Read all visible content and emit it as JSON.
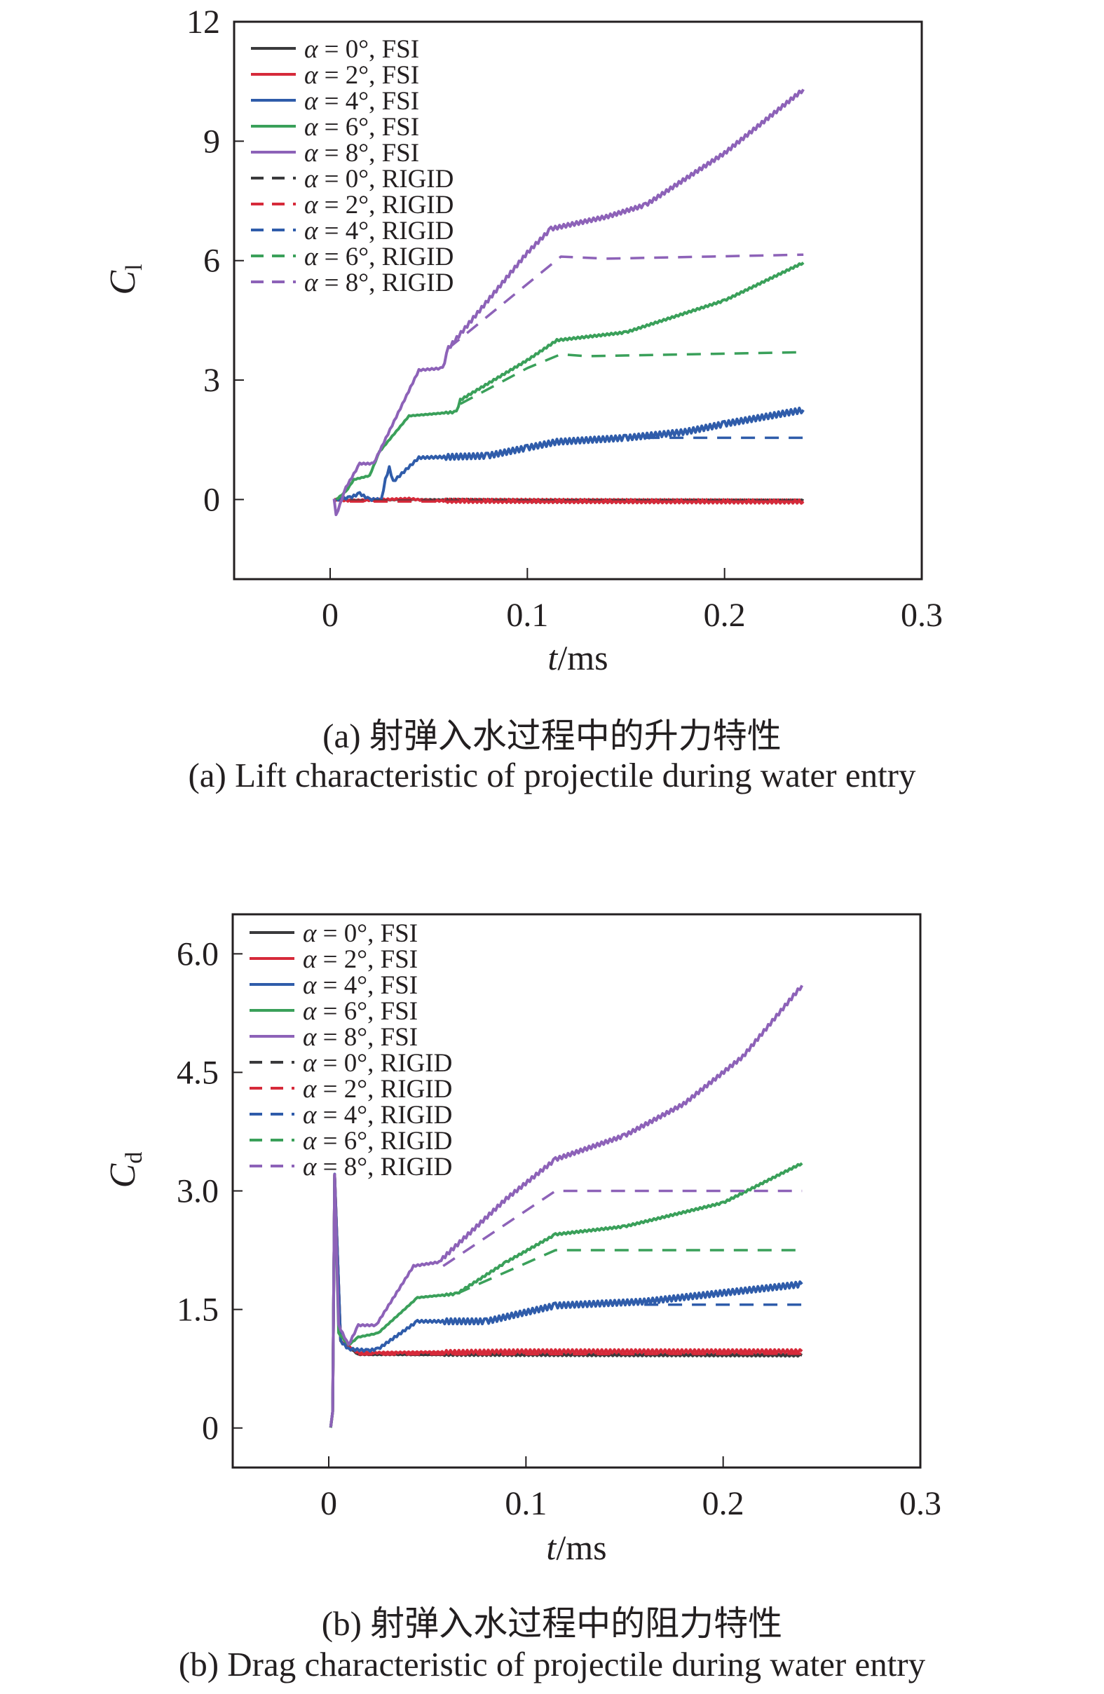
{
  "chart_data": [
    {
      "type": "line",
      "panel": "a",
      "xlabel_italic": "t",
      "xlabel_unit": "/ms",
      "ylabel_main": "C",
      "ylabel_sub": "l",
      "xlim": [
        -0.0487,
        0.3
      ],
      "ylim": [
        -2,
        12
      ],
      "xticks": [
        0,
        0.1,
        0.2,
        0.3
      ],
      "xtick_labels": [
        "0",
        "0.1",
        "0.2",
        "0.3"
      ],
      "yticks": [
        0,
        3,
        6,
        9,
        12
      ],
      "ytick_labels": [
        "0",
        "3",
        "6",
        "9",
        "12"
      ],
      "legend_position": "top-left",
      "caption_cn": "(a) 射弹入水过程中的升力特性",
      "caption_en": "(a) Lift characteristic of projectile during water entry",
      "series": [
        {
          "name": "α = 0°, FSI",
          "alpha": "α",
          "label": " = 0°, FSI",
          "color": "#3a3a3c",
          "dash": false,
          "points": [
            [
              0.002,
              0
            ],
            [
              0.01,
              -0.02
            ],
            [
              0.04,
              0
            ],
            [
              0.1,
              -0.03
            ],
            [
              0.24,
              -0.03
            ]
          ]
        },
        {
          "name": "α = 2°, FSI",
          "alpha": "α",
          "label": " = 2°, FSI",
          "color": "#d62a3a",
          "dash": false,
          "points": [
            [
              0.002,
              0
            ],
            [
              0.01,
              -0.03
            ],
            [
              0.04,
              0.02
            ],
            [
              0.05,
              -0.03
            ],
            [
              0.24,
              -0.05
            ]
          ]
        },
        {
          "name": "α = 4°, FSI",
          "alpha": "α",
          "label": " = 4°, FSI",
          "color": "#2f5caa",
          "dash": false,
          "points": [
            [
              0.003,
              0
            ],
            [
              0.01,
              0.05
            ],
            [
              0.015,
              0.15
            ],
            [
              0.02,
              0
            ],
            [
              0.026,
              0
            ],
            [
              0.028,
              0.5
            ],
            [
              0.03,
              0.8
            ],
            [
              0.032,
              0.45
            ],
            [
              0.045,
              1.05
            ],
            [
              0.08,
              1.1
            ],
            [
              0.1,
              1.3
            ],
            [
              0.115,
              1.45
            ],
            [
              0.15,
              1.55
            ],
            [
              0.18,
              1.7
            ],
            [
              0.2,
              1.9
            ],
            [
              0.24,
              2.25
            ]
          ]
        },
        {
          "name": "α = 6°, FSI",
          "alpha": "α",
          "label": " = 6°, FSI",
          "color": "#3aa05a",
          "dash": false,
          "points": [
            [
              0.003,
              0
            ],
            [
              0.008,
              0.2
            ],
            [
              0.012,
              0.5
            ],
            [
              0.02,
              0.6
            ],
            [
              0.025,
              1.2
            ],
            [
              0.04,
              2.1
            ],
            [
              0.064,
              2.2
            ],
            [
              0.066,
              2.5
            ],
            [
              0.1,
              3.5
            ],
            [
              0.115,
              4.0
            ],
            [
              0.15,
              4.2
            ],
            [
              0.2,
              5.0
            ],
            [
              0.24,
              5.95
            ]
          ]
        },
        {
          "name": "α = 8°, FSI",
          "alpha": "α",
          "label": " = 8°, FSI",
          "color": "#8d62b8",
          "dash": false,
          "points": [
            [
              0.002,
              0
            ],
            [
              0.003,
              -0.4
            ],
            [
              0.008,
              0.3
            ],
            [
              0.015,
              0.9
            ],
            [
              0.022,
              0.9
            ],
            [
              0.045,
              3.25
            ],
            [
              0.057,
              3.3
            ],
            [
              0.06,
              3.8
            ],
            [
              0.1,
              6.2
            ],
            [
              0.112,
              6.8
            ],
            [
              0.14,
              7.1
            ],
            [
              0.16,
              7.4
            ],
            [
              0.2,
              8.7
            ],
            [
              0.24,
              10.3
            ]
          ]
        },
        {
          "name": "α = 0°, RIGID",
          "alpha": "α",
          "label": " = 0°, RIGID",
          "color": "#3a3a3c",
          "dash": true,
          "points": [
            [
              0.01,
              -0.03
            ],
            [
              0.24,
              -0.03
            ]
          ]
        },
        {
          "name": "α = 2°, RIGID",
          "alpha": "α",
          "label": " = 2°, RIGID",
          "color": "#d62a3a",
          "dash": true,
          "points": [
            [
              0.01,
              -0.05
            ],
            [
              0.24,
              -0.05
            ]
          ]
        },
        {
          "name": "α = 4°, RIGID",
          "alpha": "α",
          "label": " = 4°, RIGID",
          "color": "#2f5caa",
          "dash": true,
          "points": [
            [
              0.16,
              1.55
            ],
            [
              0.24,
              1.55
            ]
          ]
        },
        {
          "name": "α = 6°, RIGID",
          "alpha": "α",
          "label": " = 6°, RIGID",
          "color": "#3aa05a",
          "dash": true,
          "points": [
            [
              0.066,
              2.4
            ],
            [
              0.1,
              3.3
            ],
            [
              0.117,
              3.65
            ],
            [
              0.13,
              3.6
            ],
            [
              0.24,
              3.7
            ]
          ]
        },
        {
          "name": "α = 8°, RIGID",
          "alpha": "α",
          "label": " = 8°, RIGID",
          "color": "#8d62b8",
          "dash": true,
          "points": [
            [
              0.06,
              3.8
            ],
            [
              0.117,
              6.1
            ],
            [
              0.14,
              6.05
            ],
            [
              0.24,
              6.15
            ]
          ]
        }
      ]
    },
    {
      "type": "line",
      "panel": "b",
      "xlabel_italic": "t",
      "xlabel_unit": "/ms",
      "ylabel_main": "C",
      "ylabel_sub": "d",
      "xlim": [
        -0.0487,
        0.3
      ],
      "ylim": [
        -0.5,
        6.5
      ],
      "xticks": [
        0,
        0.1,
        0.2,
        0.3
      ],
      "xtick_labels": [
        "0",
        "0.1",
        "0.2",
        "0.3"
      ],
      "yticks": [
        0,
        1.5,
        3.0,
        4.5,
        6.0
      ],
      "ytick_labels": [
        "0",
        "1.5",
        "3.0",
        "4.5",
        "6.0"
      ],
      "legend_position": "top-left",
      "caption_cn": "(b) 射弹入水过程中的阻力特性",
      "caption_en": "(b) Drag characteristic of projectile during water entry",
      "series": [
        {
          "name": "α = 0°, FSI",
          "alpha": "α",
          "label": " = 0°, FSI",
          "color": "#3a3a3c",
          "dash": false,
          "points": [
            [
              0.001,
              0
            ],
            [
              0.002,
              0.2
            ],
            [
              0.003,
              3.2
            ],
            [
              0.006,
              1.1
            ],
            [
              0.015,
              0.93
            ],
            [
              0.24,
              0.92
            ]
          ]
        },
        {
          "name": "α = 2°, FSI",
          "alpha": "α",
          "label": " = 2°, FSI",
          "color": "#d62a3a",
          "dash": false,
          "points": [
            [
              0.001,
              0
            ],
            [
              0.002,
              0.2
            ],
            [
              0.003,
              3.2
            ],
            [
              0.006,
              1.1
            ],
            [
              0.015,
              0.95
            ],
            [
              0.1,
              0.97
            ],
            [
              0.24,
              0.97
            ]
          ]
        },
        {
          "name": "α = 4°, FSI",
          "alpha": "α",
          "label": " = 4°, FSI",
          "color": "#2f5caa",
          "dash": false,
          "points": [
            [
              0.001,
              0
            ],
            [
              0.002,
              0.2
            ],
            [
              0.003,
              3.2
            ],
            [
              0.006,
              1.1
            ],
            [
              0.01,
              1.0
            ],
            [
              0.02,
              0.98
            ],
            [
              0.025,
              1.0
            ],
            [
              0.045,
              1.35
            ],
            [
              0.08,
              1.35
            ],
            [
              0.115,
              1.55
            ],
            [
              0.16,
              1.6
            ],
            [
              0.24,
              1.82
            ]
          ]
        },
        {
          "name": "α = 6°, FSI",
          "alpha": "α",
          "label": " = 6°, FSI",
          "color": "#3aa05a",
          "dash": false,
          "points": [
            [
              0.001,
              0
            ],
            [
              0.002,
              0.2
            ],
            [
              0.003,
              3.2
            ],
            [
              0.005,
              1.2
            ],
            [
              0.01,
              1.05
            ],
            [
              0.015,
              1.15
            ],
            [
              0.025,
              1.2
            ],
            [
              0.045,
              1.65
            ],
            [
              0.065,
              1.7
            ],
            [
              0.09,
              2.1
            ],
            [
              0.115,
              2.45
            ],
            [
              0.15,
              2.55
            ],
            [
              0.2,
              2.85
            ],
            [
              0.24,
              3.35
            ]
          ]
        },
        {
          "name": "α = 8°, FSI",
          "alpha": "α",
          "label": " = 8°, FSI",
          "color": "#8d62b8",
          "dash": false,
          "points": [
            [
              0.001,
              0
            ],
            [
              0.002,
              0.2
            ],
            [
              0.003,
              3.2
            ],
            [
              0.005,
              1.3
            ],
            [
              0.01,
              1.05
            ],
            [
              0.015,
              1.3
            ],
            [
              0.024,
              1.3
            ],
            [
              0.043,
              2.05
            ],
            [
              0.056,
              2.1
            ],
            [
              0.06,
              2.2
            ],
            [
              0.09,
              2.9
            ],
            [
              0.115,
              3.4
            ],
            [
              0.15,
              3.7
            ],
            [
              0.18,
              4.1
            ],
            [
              0.21,
              4.7
            ],
            [
              0.24,
              5.6
            ]
          ]
        },
        {
          "name": "α = 0°, RIGID",
          "alpha": "α",
          "label": " = 0°, RIGID",
          "color": "#3a3a3c",
          "dash": true,
          "points": [
            [
              0.015,
              0.93
            ],
            [
              0.24,
              0.93
            ]
          ]
        },
        {
          "name": "α = 2°, RIGID",
          "alpha": "α",
          "label": " = 2°, RIGID",
          "color": "#d62a3a",
          "dash": true,
          "points": [
            [
              0.015,
              0.93
            ],
            [
              0.24,
              0.94
            ]
          ]
        },
        {
          "name": "α = 4°, RIGID",
          "alpha": "α",
          "label": " = 4°, RIGID",
          "color": "#2f5caa",
          "dash": true,
          "points": [
            [
              0.16,
              1.56
            ],
            [
              0.24,
              1.56
            ]
          ]
        },
        {
          "name": "α = 6°, RIGID",
          "alpha": "α",
          "label": " = 6°, RIGID",
          "color": "#3aa05a",
          "dash": true,
          "points": [
            [
              0.065,
              1.7
            ],
            [
              0.115,
              2.25
            ],
            [
              0.24,
              2.25
            ]
          ]
        },
        {
          "name": "α = 8°, RIGID",
          "alpha": "α",
          "label": " = 8°, RIGID",
          "color": "#8d62b8",
          "dash": true,
          "points": [
            [
              0.058,
              2.05
            ],
            [
              0.115,
              3.0
            ],
            [
              0.24,
              3.0
            ]
          ]
        }
      ]
    }
  ]
}
